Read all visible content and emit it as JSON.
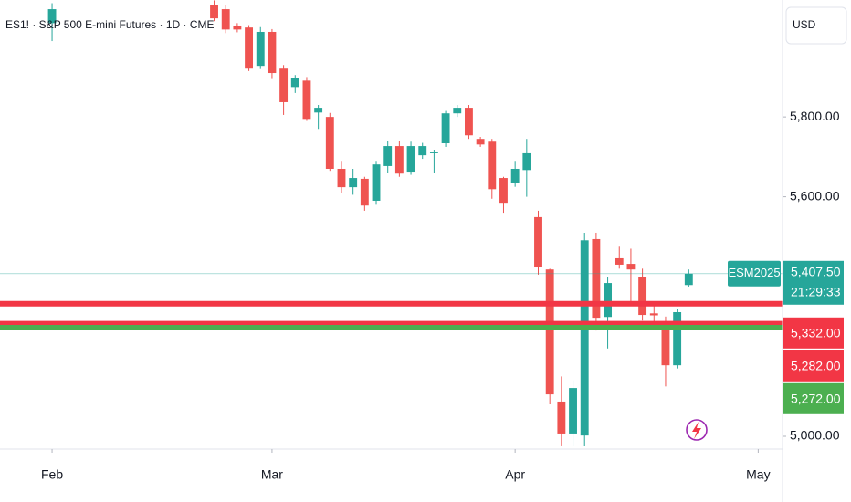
{
  "chart_data": {
    "type": "candlestick",
    "title": "ES1! · S&P 500 E-mini Futures · 1D · CME",
    "currency": "USD",
    "up_color": "#26a69a",
    "down_color": "#ef5350",
    "x": [
      0,
      14,
      15,
      16,
      17,
      18,
      19,
      20,
      21,
      22,
      23,
      24,
      25,
      26,
      27,
      28,
      29,
      30,
      31,
      32,
      33,
      34,
      35,
      36,
      37,
      38,
      39,
      40,
      41,
      42,
      43,
      44,
      45,
      46,
      47,
      48,
      49,
      50,
      51,
      52,
      53,
      54,
      55
    ],
    "open": [
      6035,
      6081,
      6070,
      6029,
      6024,
      5928,
      6013,
      5921,
      5875,
      5891,
      5811,
      5800,
      5670,
      5624,
      5645,
      5590,
      5677,
      5727,
      5663,
      5704,
      5709,
      5734,
      5809,
      5823,
      5745,
      5738,
      5647,
      5635,
      5667,
      5549,
      5418,
      5087,
      5007,
      5002,
      5494,
      5299,
      5446,
      5432,
      5400,
      5308,
      5288,
      5178,
      5379
    ],
    "high": [
      6085,
      6092,
      6080,
      6035,
      6030,
      6025,
      6020,
      5930,
      5905,
      5900,
      5830,
      5810,
      5690,
      5670,
      5650,
      5690,
      5740,
      5740,
      5738,
      5735,
      5718,
      5815,
      5830,
      5830,
      5750,
      5745,
      5650,
      5690,
      5745,
      5565,
      5420,
      5150,
      5140,
      5510,
      5510,
      5400,
      5475,
      5470,
      5420,
      5330,
      5300,
      5320,
      5418
    ],
    "low": [
      5990,
      6040,
      6010,
      6012,
      5915,
      5920,
      5895,
      5805,
      5860,
      5790,
      5770,
      5665,
      5610,
      5605,
      5565,
      5580,
      5660,
      5650,
      5655,
      5695,
      5660,
      5725,
      5800,
      5745,
      5725,
      5595,
      5560,
      5625,
      5600,
      5405,
      5080,
      4975,
      4975,
      4975,
      5265,
      5220,
      5420,
      5330,
      5290,
      5280,
      5125,
      5170,
      5375
    ],
    "close": [
      6070,
      6047,
      6019,
      6019,
      5921,
      6013,
      5910,
      5837,
      5898,
      5795,
      5823,
      5670,
      5624,
      5647,
      5578,
      5681,
      5727,
      5658,
      5727,
      5727,
      5713,
      5809,
      5823,
      5754,
      5731,
      5619,
      5585,
      5670,
      5709,
      5423,
      5105,
      5007,
      5121,
      5491,
      5297,
      5384,
      5430,
      5418,
      5304,
      5303,
      5178,
      5311,
      5407.5
    ],
    "xlim": [
      -4.5,
      63.1
    ],
    "xticks": [
      {
        "value": 0,
        "label": "Feb"
      },
      {
        "value": 19,
        "label": "Mar"
      },
      {
        "value": 40,
        "label": "Apr"
      },
      {
        "value": 61,
        "label": "May"
      }
    ],
    "ylim": [
      4968,
      6093
    ],
    "yticks": [
      {
        "value": 5000,
        "label": "5,000.00"
      },
      {
        "value": 5600,
        "label": "5,600.00"
      },
      {
        "value": 5800,
        "label": "5,800.00"
      }
    ],
    "last": {
      "symbol": "ESM2025",
      "value": 5407.5,
      "label": "5,407.50",
      "countdown": "21:29:33",
      "color": "#26a69a"
    },
    "levels": [
      {
        "value": 5332,
        "label": "5,332.00",
        "color": "#f23645"
      },
      {
        "value": 5282,
        "label": "5,282.00",
        "color": "#f23645"
      },
      {
        "value": 5272,
        "label": "5,272.00",
        "color": "#4caf50"
      }
    ]
  }
}
